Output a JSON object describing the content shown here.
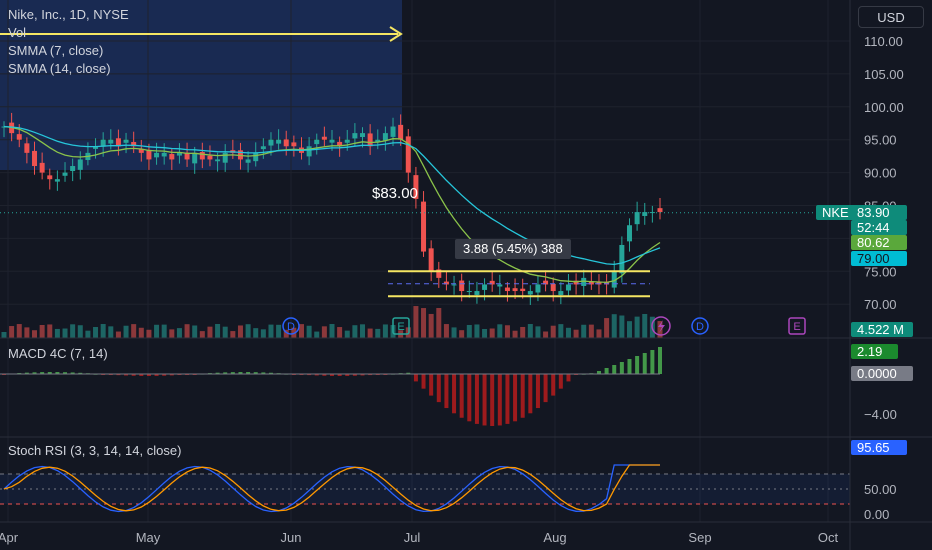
{
  "header": {
    "symbol_line": "Nike, Inc., 1D, NYSE",
    "vol_label": "Vol",
    "smma7_label": "SMMA (7, close)",
    "smma14_label": "SMMA (14, close)",
    "currency_button": "USD"
  },
  "colors": {
    "background": "#131722",
    "up": "#26a69a",
    "down": "#ef5350",
    "smma7": "#8bc34a",
    "smma14": "#26c6da",
    "yellow": "#f5e663",
    "macd_up": "#4caf50",
    "macd_down": "#b71c1c",
    "stoch_k": "#2962ff",
    "stoch_d": "#ff9800"
  },
  "price_axis": {
    "ticks": [
      "110.00",
      "105.00",
      "100.00",
      "95.00",
      "90.00",
      "85.00",
      "80.00",
      "75.00",
      "70.00"
    ]
  },
  "time_axis": {
    "labels": [
      "Apr",
      "May",
      "Jun",
      "Jul",
      "Aug",
      "Sep",
      "Oct"
    ]
  },
  "badges": {
    "symbol_tag": "NKE",
    "last_price": "83.90",
    "countdown": "52:44",
    "smma7_value": "80.62",
    "smma14_value": "79.00",
    "volume_value": "4.522 M",
    "macd_value": "2.19",
    "macd_signal_value": "0.0000",
    "stoch_value": "95.65"
  },
  "annotations": {
    "price_note": "$83.00",
    "range_measure": "3.88 (5.45%) 388"
  },
  "event_markers": [
    "D",
    "E",
    "D",
    "E"
  ],
  "macd": {
    "label": "MACD 4C (7, 14)",
    "ticks": [
      "−4.00"
    ]
  },
  "stoch": {
    "label": "Stoch RSI (3, 3, 14, 14, close)",
    "ticks": [
      "50.00",
      "0.00"
    ]
  },
  "chart_data": {
    "type": "candlestick",
    "title": "Nike, Inc., 1D, NYSE",
    "ylim": [
      68,
      112
    ],
    "y_ticks": [
      70,
      75,
      80,
      85,
      90,
      95,
      100,
      105,
      110
    ],
    "x_labels": [
      "Apr",
      "May",
      "Jun",
      "Jul",
      "Aug",
      "Sep",
      "Oct"
    ],
    "last_price": 83.9,
    "smma_7_last": 80.62,
    "smma_14_last": 79.0,
    "range_box": {
      "low": 71.2,
      "mid": 73.1,
      "high": 75.0
    },
    "measure": {
      "change": 3.88,
      "percent": 5.45,
      "bars": 388
    },
    "price_note": 83.0,
    "closes_apr_to_aug": [
      97,
      96,
      95,
      93,
      91,
      90,
      89,
      89,
      90,
      91,
      92,
      93,
      94,
      95,
      95,
      94,
      95,
      94,
      93,
      92,
      93,
      93,
      92,
      93,
      92,
      93,
      92,
      92,
      92,
      93,
      93,
      92,
      92,
      93,
      94,
      95,
      95,
      94,
      94,
      93,
      94,
      95,
      95,
      95,
      94,
      95,
      96,
      96,
      94,
      95,
      96,
      97,
      95,
      90,
      86,
      78,
      75,
      74,
      73,
      73,
      72,
      72,
      72,
      73,
      73,
      73,
      72,
      72,
      72,
      72,
      73,
      73,
      72,
      72,
      73,
      73,
      74,
      73,
      73,
      73,
      75,
      79,
      82,
      84,
      84,
      84,
      84
    ],
    "volume_last_m": 4.522,
    "macd_last": 2.19,
    "stoch_rsi_last": 95.65
  }
}
